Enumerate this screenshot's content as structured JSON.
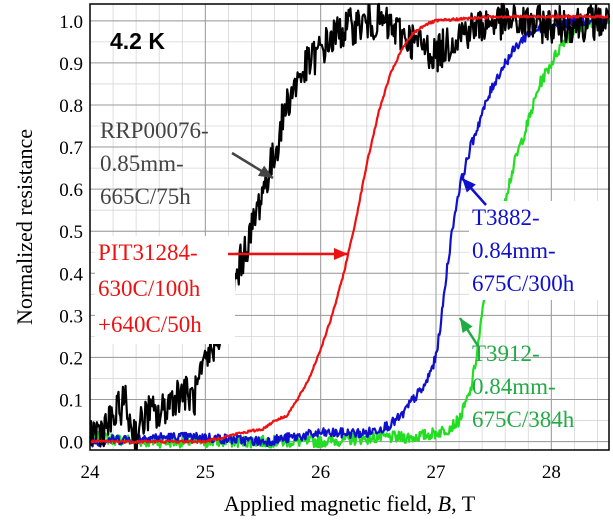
{
  "chart_data": {
    "type": "line",
    "xlabel": "Applied magnetic field, B, T",
    "xlabel_parts": [
      "Applied magnetic field, ",
      "B",
      ", T"
    ],
    "ylabel": "Normalized resistance",
    "xlim": [
      24,
      28.5
    ],
    "ylim": [
      -0.02,
      1.04
    ],
    "x_ticks": [
      24,
      25,
      26,
      27,
      28
    ],
    "x_tick_labels": [
      "24",
      "25",
      "26",
      "27",
      "28"
    ],
    "y_ticks": [
      0.0,
      0.1,
      0.2,
      0.3,
      0.4,
      0.5,
      0.6,
      0.7,
      0.8,
      0.9,
      1.0
    ],
    "y_tick_labels": [
      "0.0",
      "0.1",
      "0.2",
      "0.3",
      "0.4",
      "0.5",
      "0.6",
      "0.7",
      "0.8",
      "0.9",
      "1.0"
    ],
    "x_minor_step": 0.2,
    "y_minor_step": 0.05,
    "grid": true,
    "temperature_label": "4.2 K",
    "series": [
      {
        "label_lines": [
          "RRP00076-",
          "0.85mm-",
          "665C/75h"
        ],
        "color": "#000000",
        "points": [
          [
            24.0,
            0.02
          ],
          [
            24.1,
            0.03
          ],
          [
            24.2,
            0.05
          ],
          [
            24.3,
            0.1
          ],
          [
            24.35,
            0.04
          ],
          [
            24.4,
            0.02
          ],
          [
            24.5,
            0.07
          ],
          [
            24.6,
            0.06
          ],
          [
            24.7,
            0.1
          ],
          [
            24.8,
            0.12
          ],
          [
            24.9,
            0.1
          ],
          [
            25.0,
            0.18
          ],
          [
            25.1,
            0.25
          ],
          [
            25.2,
            0.32
          ],
          [
            25.3,
            0.42
          ],
          [
            25.4,
            0.5
          ],
          [
            25.5,
            0.6
          ],
          [
            25.6,
            0.68
          ],
          [
            25.7,
            0.8
          ],
          [
            25.8,
            0.86
          ],
          [
            25.9,
            0.9
          ],
          [
            26.0,
            0.93
          ],
          [
            26.1,
            0.96
          ],
          [
            26.2,
            0.98
          ],
          [
            26.3,
            0.99
          ],
          [
            26.5,
            1.0
          ],
          [
            27.0,
            0.92
          ],
          [
            27.2,
            0.97
          ],
          [
            27.5,
            1.0
          ],
          [
            28.0,
            0.99
          ],
          [
            28.5,
            1.0
          ]
        ]
      },
      {
        "label_lines": [
          "PIT31284-",
          "630C/100h",
          "+640C/50h"
        ],
        "color": "#ee1111",
        "points": [
          [
            24.0,
            0.0
          ],
          [
            24.5,
            0.0
          ],
          [
            25.0,
            0.0
          ],
          [
            25.3,
            0.02
          ],
          [
            25.5,
            0.03
          ],
          [
            25.6,
            0.05
          ],
          [
            25.7,
            0.06
          ],
          [
            25.8,
            0.1
          ],
          [
            25.9,
            0.15
          ],
          [
            26.0,
            0.22
          ],
          [
            26.1,
            0.3
          ],
          [
            26.2,
            0.4
          ],
          [
            26.3,
            0.52
          ],
          [
            26.4,
            0.66
          ],
          [
            26.5,
            0.78
          ],
          [
            26.6,
            0.87
          ],
          [
            26.7,
            0.93
          ],
          [
            26.8,
            0.97
          ],
          [
            26.9,
            0.99
          ],
          [
            27.0,
            1.0
          ],
          [
            27.5,
            1.01
          ],
          [
            28.0,
            1.01
          ],
          [
            28.5,
            1.01
          ]
        ]
      },
      {
        "label_lines": [
          "T3882-",
          "0.84mm-",
          "675C/300h"
        ],
        "color": "#1010cc",
        "points": [
          [
            24.0,
            0.0
          ],
          [
            24.5,
            0.01
          ],
          [
            25.0,
            0.01
          ],
          [
            25.5,
            0.0
          ],
          [
            26.0,
            0.02
          ],
          [
            26.4,
            0.02
          ],
          [
            26.6,
            0.04
          ],
          [
            26.7,
            0.06
          ],
          [
            26.8,
            0.1
          ],
          [
            26.9,
            0.13
          ],
          [
            27.0,
            0.2
          ],
          [
            27.05,
            0.3
          ],
          [
            27.1,
            0.42
          ],
          [
            27.15,
            0.52
          ],
          [
            27.2,
            0.6
          ],
          [
            27.3,
            0.7
          ],
          [
            27.4,
            0.78
          ],
          [
            27.5,
            0.85
          ],
          [
            27.6,
            0.9
          ],
          [
            27.7,
            0.94
          ],
          [
            27.8,
            0.97
          ],
          [
            28.0,
            0.99
          ],
          [
            28.2,
            1.0
          ],
          [
            28.5,
            1.0
          ]
        ]
      },
      {
        "label_lines": [
          "T3912-",
          "0.84mm-",
          "675C/384h"
        ],
        "color": "#22dd22",
        "points": [
          [
            24.0,
            0.01
          ],
          [
            24.5,
            0.0
          ],
          [
            25.0,
            0.0
          ],
          [
            25.5,
            0.0
          ],
          [
            26.0,
            0.0
          ],
          [
            26.5,
            0.01
          ],
          [
            26.8,
            0.01
          ],
          [
            27.0,
            0.02
          ],
          [
            27.1,
            0.03
          ],
          [
            27.2,
            0.05
          ],
          [
            27.3,
            0.12
          ],
          [
            27.35,
            0.2
          ],
          [
            27.4,
            0.3
          ],
          [
            27.45,
            0.4
          ],
          [
            27.5,
            0.48
          ],
          [
            27.6,
            0.58
          ],
          [
            27.7,
            0.68
          ],
          [
            27.8,
            0.76
          ],
          [
            27.9,
            0.85
          ],
          [
            28.0,
            0.9
          ],
          [
            28.1,
            0.95
          ],
          [
            28.2,
            0.98
          ],
          [
            28.3,
            0.99
          ],
          [
            28.5,
            1.0
          ]
        ]
      }
    ]
  }
}
